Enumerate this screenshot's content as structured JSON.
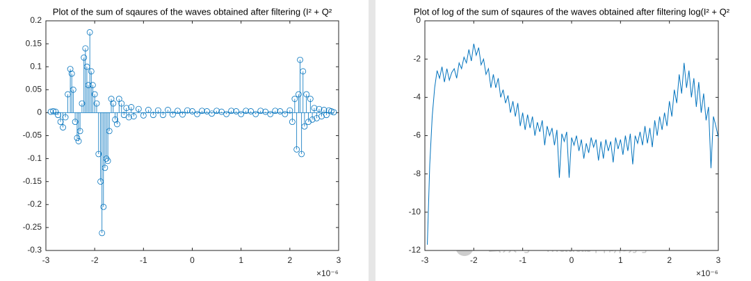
{
  "chart_data": [
    {
      "type": "stem",
      "title": "Plot of the sum of sqaures of the waves obtained after filtering (I² + Q²",
      "x_exponent": "×10⁻⁶",
      "color": "#0072bd",
      "xlim": [
        -3,
        3
      ],
      "xticks": [
        -3,
        -2,
        -1,
        0,
        1,
        2,
        3
      ],
      "ylim": [
        -0.3,
        0.2
      ],
      "yticks": [
        -0.3,
        -0.25,
        -0.2,
        -0.15,
        -0.1,
        -0.05,
        0,
        0.05,
        0.1,
        0.15,
        0.2
      ],
      "x": [
        -2.9,
        -2.85,
        -2.8,
        -2.75,
        -2.7,
        -2.65,
        -2.6,
        -2.55,
        -2.5,
        -2.47,
        -2.44,
        -2.4,
        -2.36,
        -2.33,
        -2.3,
        -2.26,
        -2.22,
        -2.19,
        -2.16,
        -2.13,
        -2.1,
        -2.07,
        -2.04,
        -2.0,
        -1.96,
        -1.92,
        -1.88,
        -1.85,
        -1.82,
        -1.79,
        -1.76,
        -1.73,
        -1.7,
        -1.66,
        -1.62,
        -1.58,
        -1.54,
        -1.5,
        -1.45,
        -1.4,
        -1.35,
        -1.3,
        -1.25,
        -1.2,
        -1.1,
        -1.0,
        -0.9,
        -0.8,
        -0.7,
        -0.6,
        -0.5,
        -0.4,
        -0.3,
        -0.2,
        -0.1,
        0,
        0.1,
        0.2,
        0.3,
        0.4,
        0.5,
        0.6,
        0.7,
        0.8,
        0.9,
        1.0,
        1.1,
        1.2,
        1.3,
        1.4,
        1.5,
        1.6,
        1.7,
        1.8,
        1.9,
        2.0,
        2.05,
        2.1,
        2.14,
        2.18,
        2.21,
        2.24,
        2.27,
        2.3,
        2.34,
        2.38,
        2.42,
        2.46,
        2.5,
        2.55,
        2.6,
        2.65,
        2.7,
        2.75,
        2.8,
        2.85,
        2.9
      ],
      "values": [
        0.002,
        0.003,
        0.002,
        -0.005,
        -0.02,
        -0.032,
        -0.01,
        0.04,
        0.095,
        0.085,
        0.05,
        -0.02,
        -0.055,
        -0.062,
        -0.04,
        0.02,
        0.12,
        0.14,
        0.1,
        0.06,
        0.175,
        0.09,
        0.06,
        0.04,
        0.02,
        -0.09,
        -0.15,
        -0.262,
        -0.205,
        -0.12,
        -0.1,
        -0.105,
        -0.04,
        0.03,
        0.02,
        -0.015,
        -0.025,
        0.03,
        0.02,
        -0.005,
        0.01,
        -0.01,
        0.012,
        -0.008,
        0.008,
        -0.006,
        0.006,
        -0.005,
        0.005,
        -0.005,
        0.006,
        -0.004,
        0.004,
        -0.004,
        0.005,
        0.003,
        -0.003,
        0.004,
        0.003,
        -0.002,
        0.004,
        0.002,
        -0.003,
        0.004,
        0.003,
        -0.003,
        0.004,
        0.003,
        -0.003,
        0.004,
        0.002,
        -0.003,
        0.004,
        0.003,
        -0.003,
        0.005,
        -0.02,
        0.03,
        -0.08,
        0.04,
        0.115,
        -0.09,
        0.09,
        -0.03,
        0.04,
        -0.02,
        0.03,
        -0.015,
        0.01,
        -0.012,
        0.008,
        -0.008,
        0.006,
        -0.005,
        0.005,
        0.003,
        0.001
      ]
    },
    {
      "type": "line",
      "title": "Plot of log of the sum of sqaures of the waves obtained after filtering log(I² + Q²",
      "x_exponent": "×10⁻⁶",
      "color": "#0072bd",
      "xlim": [
        -3,
        3
      ],
      "xticks": [
        -3,
        -2,
        -1,
        0,
        1,
        2,
        3
      ],
      "ylim": [
        -12,
        0
      ],
      "yticks": [
        -12,
        -10,
        -8,
        -6,
        -4,
        -2,
        0
      ],
      "x": [
        -2.95,
        -2.9,
        -2.85,
        -2.8,
        -2.75,
        -2.7,
        -2.65,
        -2.6,
        -2.55,
        -2.5,
        -2.45,
        -2.4,
        -2.35,
        -2.3,
        -2.25,
        -2.2,
        -2.15,
        -2.1,
        -2.05,
        -2.0,
        -1.95,
        -1.9,
        -1.85,
        -1.8,
        -1.75,
        -1.7,
        -1.65,
        -1.6,
        -1.55,
        -1.5,
        -1.45,
        -1.4,
        -1.35,
        -1.3,
        -1.25,
        -1.2,
        -1.15,
        -1.1,
        -1.05,
        -1.0,
        -0.95,
        -0.9,
        -0.85,
        -0.8,
        -0.75,
        -0.7,
        -0.65,
        -0.6,
        -0.55,
        -0.5,
        -0.45,
        -0.4,
        -0.35,
        -0.3,
        -0.25,
        -0.2,
        -0.15,
        -0.1,
        -0.05,
        0,
        0.05,
        0.1,
        0.15,
        0.2,
        0.25,
        0.3,
        0.35,
        0.4,
        0.45,
        0.5,
        0.55,
        0.6,
        0.65,
        0.7,
        0.75,
        0.8,
        0.85,
        0.9,
        0.95,
        1.0,
        1.05,
        1.1,
        1.15,
        1.2,
        1.25,
        1.3,
        1.35,
        1.4,
        1.45,
        1.5,
        1.55,
        1.6,
        1.65,
        1.7,
        1.75,
        1.8,
        1.85,
        1.9,
        1.95,
        2.0,
        2.05,
        2.1,
        2.15,
        2.2,
        2.25,
        2.3,
        2.35,
        2.4,
        2.45,
        2.5,
        2.55,
        2.6,
        2.65,
        2.7,
        2.75,
        2.8,
        2.85,
        2.9,
        2.95,
        3.0
      ],
      "values": [
        -11.7,
        -7.5,
        -5,
        -3.5,
        -2.6,
        -3,
        -2.4,
        -3.2,
        -2.5,
        -3.1,
        -2.7,
        -2.5,
        -3.0,
        -2.2,
        -2.5,
        -1.9,
        -2.2,
        -1.5,
        -2.1,
        -1.2,
        -1.8,
        -1.4,
        -2.3,
        -2.0,
        -2.8,
        -2.5,
        -3.5,
        -2.8,
        -3.5,
        -3.0,
        -4.0,
        -3.6,
        -4.3,
        -3.9,
        -4.8,
        -4.2,
        -5.0,
        -4.3,
        -5.5,
        -4.8,
        -5.7,
        -4.9,
        -5.6,
        -5.0,
        -6.0,
        -5.3,
        -5.8,
        -5.2,
        -6.5,
        -5.5,
        -6.0,
        -5.6,
        -6.5,
        -5.7,
        -8.2,
        -5.9,
        -6.3,
        -5.8,
        -8.2,
        -6.1,
        -6.5,
        -6.0,
        -6.8,
        -6.2,
        -7.2,
        -6.4,
        -6.9,
        -6.1,
        -6.6,
        -6.2,
        -7.3,
        -6.3,
        -7.2,
        -6.2,
        -6.8,
        -6.3,
        -7.4,
        -6.1,
        -6.7,
        -6.2,
        -7.0,
        -6.0,
        -6.8,
        -5.9,
        -7.5,
        -6.0,
        -6.4,
        -5.8,
        -6.5,
        -5.5,
        -6.4,
        -5.6,
        -6.6,
        -5.2,
        -6.0,
        -5.0,
        -5.7,
        -4.8,
        -5.5,
        -4.2,
        -5.0,
        -3.6,
        -4.3,
        -2.8,
        -3.8,
        -2.2,
        -3.5,
        -2.6,
        -4.0,
        -3.0,
        -4.5,
        -3.2,
        -4.8,
        -3.8,
        -5.2,
        -4.5,
        -7.7,
        -5.0,
        -5.5,
        -6.1
      ]
    }
  ],
  "watermark": "公众号 · Matlab科研助手"
}
